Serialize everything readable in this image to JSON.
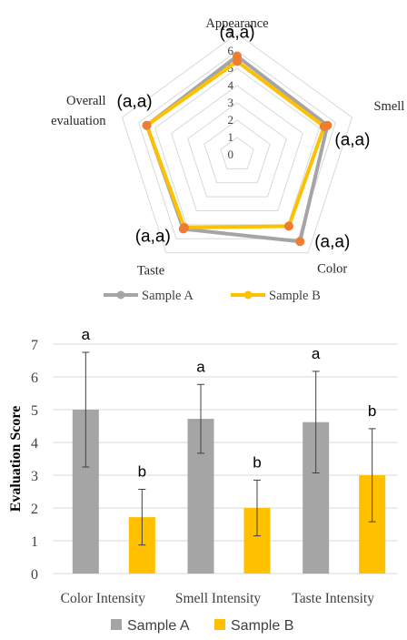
{
  "chart_data": [
    {
      "type": "radar",
      "axes": [
        "Appearance",
        "Smell",
        "Color",
        "Taste",
        "Overall evaluation"
      ],
      "axis_labels": [
        [
          "Appearance"
        ],
        [
          "Smell"
        ],
        [
          "Color"
        ],
        [
          "Taste"
        ],
        [
          "Overall",
          "evaluation"
        ]
      ],
      "ticks": [
        "0",
        "1",
        "2",
        "3",
        "4",
        "5",
        "6",
        "7"
      ],
      "rmax": 7,
      "series": [
        {
          "name": "Sample A",
          "values": [
            5.7,
            5.5,
            6.2,
            5.3,
            5.5
          ],
          "color": "#a5a5a5"
        },
        {
          "name": "Sample B",
          "values": [
            5.4,
            5.3,
            5.1,
            5.2,
            5.5
          ],
          "color": "#ffc000"
        }
      ],
      "annotations": [
        "(a,a)",
        "(a,a)",
        "(a,a)",
        "(a,a)",
        "(a,a)"
      ],
      "marker_color": "#ed7d31",
      "legend": "bottom"
    },
    {
      "type": "bar",
      "categories": [
        "Color Intensity",
        "Smell Intensity",
        "Taste Intensity"
      ],
      "series": [
        {
          "name": "Sample A",
          "values": [
            5.0,
            4.72,
            4.62
          ],
          "error": [
            1.75,
            1.05,
            1.55
          ],
          "labels": [
            "a",
            "a",
            "a"
          ],
          "color": "#a5a5a5"
        },
        {
          "name": "Sample B",
          "values": [
            1.72,
            2.0,
            3.0
          ],
          "error": [
            0.85,
            0.85,
            1.42
          ],
          "labels": [
            "b",
            "b",
            "b"
          ],
          "color": "#ffc000"
        }
      ],
      "ylabel": "Evaluation Score",
      "ylim": [
        0,
        7
      ],
      "yticks": [
        "0",
        "1",
        "2",
        "3",
        "4",
        "5",
        "6",
        "7"
      ],
      "grid": true,
      "legend": "bottom"
    }
  ]
}
